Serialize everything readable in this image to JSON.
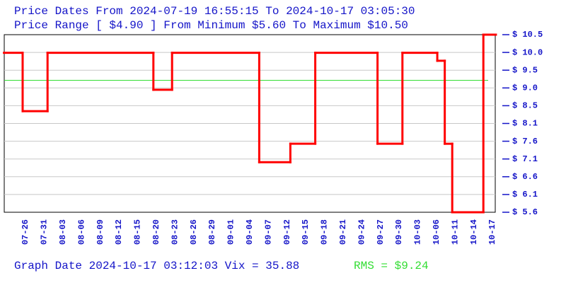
{
  "chart_data": {
    "type": "step",
    "title": "Price Dates From 2024-07-19 16:55:15 To 2024-10-17 03:05:30",
    "subtitle": "Price Range [ $4.90 ] From Minimum $5.60 To Maximum $10.50",
    "footer": "Graph Date 2024-10-17 03:12:03 Vix = 35.88",
    "rms": {
      "value": 9.24,
      "label": "RMS = $9.24",
      "color": "#33dd33"
    },
    "series": [
      {
        "color": "#ff0000",
        "x": [
          "07-21",
          "07-26",
          "08-01",
          "08-20",
          "08-23",
          "09-06",
          "09-13",
          "09-17",
          "09-27",
          "10-01",
          "10-07",
          "10-09",
          "10-11",
          "10-16",
          "10-18"
        ],
        "values": [
          10.0,
          8.39,
          10.0,
          8.98,
          10.0,
          6.98,
          7.49,
          10.0,
          7.49,
          10.0,
          9.78,
          7.49,
          5.6,
          10.5,
          10.5
        ]
      }
    ],
    "ylim": [
      5.6,
      10.5
    ],
    "yticks": [
      {
        "value": 5.6,
        "label": "$ 5.6"
      },
      {
        "value": 6.09,
        "label": "$ 6.1"
      },
      {
        "value": 6.58,
        "label": "$ 6.6"
      },
      {
        "value": 7.07,
        "label": "$ 7.1"
      },
      {
        "value": 7.56,
        "label": "$ 7.6"
      },
      {
        "value": 8.05,
        "label": "$ 8.1"
      },
      {
        "value": 8.54,
        "label": "$ 8.5"
      },
      {
        "value": 9.03,
        "label": "$ 9.0"
      },
      {
        "value": 9.52,
        "label": "$ 9.5"
      },
      {
        "value": 10.01,
        "label": "$ 10.0"
      },
      {
        "value": 10.5,
        "label": "$ 10.5"
      }
    ],
    "xticks": [
      "07-26",
      "07-31",
      "08-03",
      "08-06",
      "08-09",
      "08-12",
      "08-15",
      "08-20",
      "08-23",
      "08-26",
      "08-29",
      "09-01",
      "09-04",
      "09-07",
      "09-12",
      "09-15",
      "09-18",
      "09-21",
      "09-24",
      "09-27",
      "09-30",
      "10-03",
      "10-06",
      "10-11",
      "10-14",
      "10-17"
    ],
    "grid": true
  }
}
